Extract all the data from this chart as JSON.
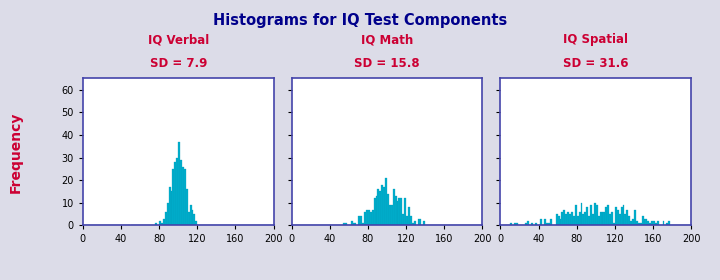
{
  "title": "Histograms for IQ Test Components",
  "title_color": "#00008B",
  "title_fontsize": 10.5,
  "ylabel": "Frequency",
  "ylabel_color": "#cc0033",
  "ylabel_fontsize": 10,
  "panels": [
    {
      "label_line1": "IQ Verbal",
      "label_line2": "SD = 7.9",
      "mean": 100,
      "sd": 7.9,
      "n": 300,
      "seed": 1
    },
    {
      "label_line1": "IQ Math",
      "label_line2": "SD = 15.8",
      "mean": 100,
      "sd": 15.8,
      "n": 300,
      "seed": 5
    },
    {
      "label_line1": "IQ Spatial",
      "label_line2": "SD = 31.6",
      "mean": 100,
      "sd": 31.6,
      "n": 300,
      "seed": 9
    }
  ],
  "bar_color": "#00AECC",
  "bar_edge_color": "#009AB8",
  "xlim": [
    0,
    200
  ],
  "xticks": [
    0,
    40,
    80,
    120,
    160,
    200
  ],
  "ylim": [
    0,
    65
  ],
  "yticks": [
    0,
    10,
    20,
    30,
    40,
    50,
    60
  ],
  "subplot_title_color": "#cc0033",
  "subplot_title_fontsize": 8.5,
  "spine_color": "#4444aa",
  "background_color": "#ffffff",
  "fig_background": "#dcdce8",
  "bin_width": 2
}
